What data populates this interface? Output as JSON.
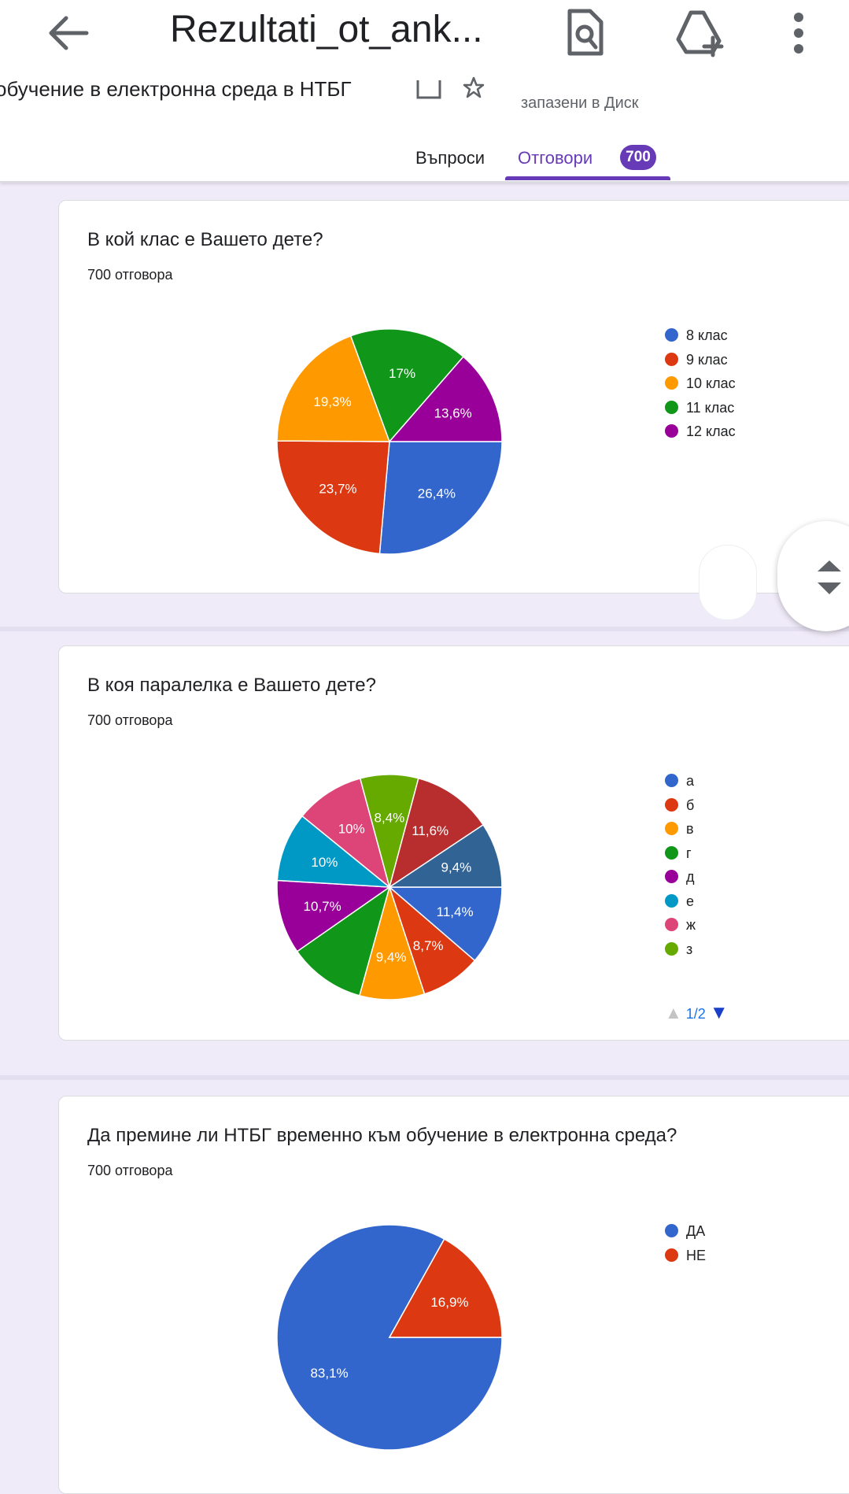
{
  "toolbar": {
    "title": "Rezultati_ot_ank...",
    "icons": [
      "back-arrow-icon",
      "find-in-page-icon",
      "add-to-drive-icon",
      "more-vert-icon"
    ]
  },
  "form": {
    "name": "обучение в електронна среда в НТБГ",
    "saved_text": "запазени в Диск",
    "tabs": [
      {
        "label": "Въпроси"
      },
      {
        "label": "Отговори"
      }
    ],
    "responses_badge": "700"
  },
  "questions": [
    {
      "title": "В кой клас е Вашето дете?",
      "count": "700 отговора",
      "legend": [
        "8 клас",
        "9 клас",
        "10 клас",
        "11 клас",
        "12 клас"
      ]
    },
    {
      "title": "В коя паралелка е Вашето дете?",
      "count": "700 отговора",
      "legend": [
        "а",
        "б",
        "в",
        "г",
        "д",
        "е",
        "ж",
        "з"
      ],
      "pager": "1/2"
    },
    {
      "title": "Да премине ли НТБГ временно към обучение в електронна среда?",
      "count": "700 отговора",
      "legend": [
        "ДА",
        "НЕ"
      ]
    }
  ],
  "chart_data": [
    {
      "type": "pie",
      "title": "В кой клас е Вашето дете?",
      "labels": [
        "8 клас",
        "9 клас",
        "10 клас",
        "11 клас",
        "12 клас"
      ],
      "values": [
        26.4,
        23.7,
        19.3,
        17,
        13.6
      ],
      "value_labels": [
        "26,4%",
        "23,7%",
        "19,3%",
        "17%",
        "13,6%"
      ],
      "colors": [
        "#3366cc",
        "#dc3912",
        "#ff9900",
        "#109618",
        "#990099"
      ],
      "legend": "right"
    },
    {
      "type": "pie",
      "title": "В коя паралелка е Вашето дете?",
      "labels": [
        "а",
        "б",
        "в",
        "г",
        "д",
        "е",
        "ж",
        "з",
        "",
        ""
      ],
      "values": [
        11.4,
        8.7,
        9.4,
        11.1,
        10.7,
        10,
        10,
        8.4,
        11.6,
        9.4
      ],
      "value_labels": [
        "11,4%",
        "8,7%",
        "9,4%",
        "",
        "10,7%",
        "10%",
        "10%",
        "8,4%",
        "11,6%",
        "9,4%"
      ],
      "colors": [
        "#3366cc",
        "#dc3912",
        "#ff9900",
        "#109618",
        "#990099",
        "#0099c6",
        "#dd4477",
        "#66aa00",
        "#b82e2e",
        "#316395"
      ],
      "legend": "right"
    },
    {
      "type": "pie",
      "title": "Да премине ли НТБГ временно към обучение в електронна среда?",
      "labels": [
        "ДА",
        "НЕ"
      ],
      "values": [
        83.1,
        16.9
      ],
      "value_labels": [
        "83,1%",
        "16,9%"
      ],
      "colors": [
        "#3366cc",
        "#dc3912"
      ],
      "legend": "right"
    }
  ]
}
